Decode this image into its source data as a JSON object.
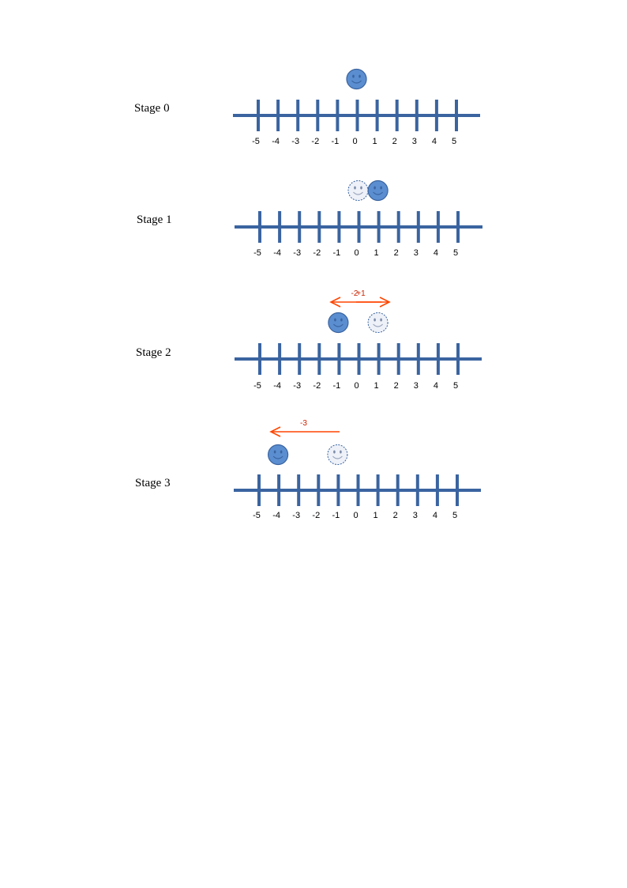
{
  "colors": {
    "axis": "#3a64a0",
    "arrow": "#ff4500",
    "arrow_label": "#cc2200",
    "face_fill": "#5b8ed0",
    "face_stroke": "#3a64a0",
    "ghost_fill": "#eef1f8",
    "ghost_stroke": "#3a64a0"
  },
  "icons": {
    "face": "smiley-face-icon",
    "ghost": "ghost-smiley-face-icon"
  },
  "tick_labels": [
    "-5",
    "-4",
    "-3",
    "-2",
    "-1",
    "0",
    "1",
    "2",
    "3",
    "4",
    "5"
  ],
  "stages": [
    {
      "label": "Stage 0",
      "position": 0,
      "previous": null,
      "move_label": ""
    },
    {
      "label": "Stage 1",
      "position": 1,
      "previous": 0,
      "move_label": "+1"
    },
    {
      "label": "Stage 2",
      "position": -1,
      "previous": 1,
      "move_label": "-2"
    },
    {
      "label": "Stage 3",
      "position": -4,
      "previous": -1,
      "move_label": "-3"
    }
  ]
}
